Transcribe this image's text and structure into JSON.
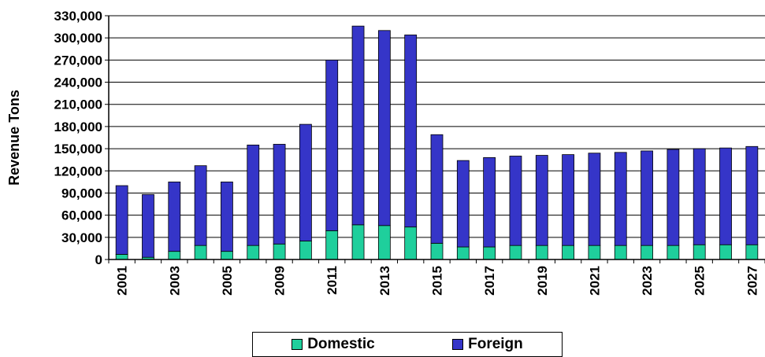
{
  "colors": {
    "domestic": "#1fcf9c",
    "foreign": "#3535c8",
    "stroke": "#000000"
  },
  "chart_data": {
    "type": "bar",
    "stacked": true,
    "ylabel": "Revenue Tons",
    "ylim": [
      0,
      330000
    ],
    "yticks": [
      0,
      30000,
      60000,
      90000,
      120000,
      150000,
      180000,
      210000,
      240000,
      270000,
      300000,
      330000
    ],
    "ytick_labels": [
      "0",
      "30,000",
      "60,000",
      "90,000",
      "120,000",
      "150,000",
      "180,000",
      "210,000",
      "240,000",
      "270,000",
      "300,000",
      "330,000"
    ],
    "grid": true,
    "legend_position": "bottom",
    "categories": [
      "2001",
      "2002",
      "2003",
      "2004",
      "2005",
      "2008",
      "2009",
      "2010",
      "2011",
      "2012",
      "2013",
      "2014",
      "2015",
      "2016",
      "2017",
      "2018",
      "2019",
      "2020",
      "2021",
      "2022",
      "2023",
      "2024",
      "2025",
      "2026",
      "2027"
    ],
    "category_labels": [
      "2001",
      "",
      "2003",
      "",
      "2005",
      "",
      "2009",
      "",
      "2011",
      "",
      "2013",
      "",
      "2015",
      "",
      "2017",
      "",
      "2019",
      "",
      "2021",
      "",
      "2023",
      "",
      "2025",
      "",
      "2027"
    ],
    "series": [
      {
        "name": "Domestic",
        "values": [
          7000,
          3000,
          11000,
          19000,
          11000,
          19000,
          21000,
          25000,
          39000,
          47000,
          46000,
          44000,
          22000,
          17000,
          17000,
          19000,
          19000,
          19000,
          19000,
          19000,
          19000,
          19000,
          20000,
          20000,
          20000
        ]
      },
      {
        "name": "Foreign",
        "values": [
          93000,
          85000,
          94000,
          108000,
          94000,
          136000,
          135000,
          158000,
          231000,
          269000,
          264000,
          260000,
          147000,
          117000,
          121000,
          121000,
          122000,
          123000,
          125000,
          126000,
          128000,
          130000,
          130000,
          131000,
          133000
        ]
      }
    ]
  }
}
